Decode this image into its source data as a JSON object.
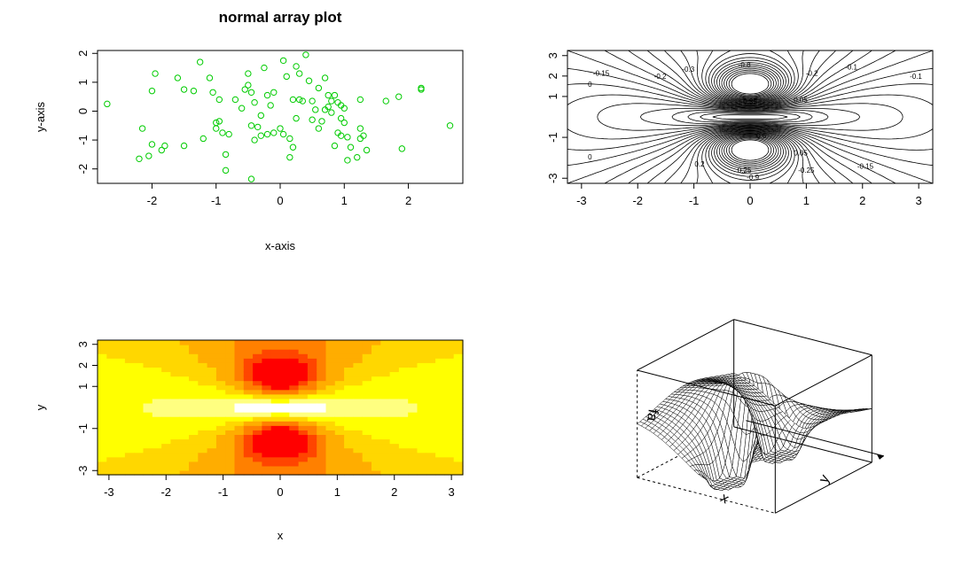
{
  "chart_data": [
    {
      "type": "scatter",
      "title": "normal array plot",
      "xlabel": "x-axis",
      "ylabel": "y-axis",
      "xlim": [
        -2.85,
        2.85
      ],
      "ylim": [
        -2.5,
        2.1
      ],
      "xticks": [
        "-2",
        "-1",
        "0",
        "1",
        "2"
      ],
      "yticks": [
        "-2",
        "-1",
        "0",
        "1",
        "2"
      ],
      "marker": "open-circle",
      "color": "#00cc00",
      "points": [
        [
          -2.7,
          0.25
        ],
        [
          -2.2,
          -1.65
        ],
        [
          -2.15,
          -0.6
        ],
        [
          -2.05,
          -1.55
        ],
        [
          -2.0,
          0.7
        ],
        [
          -2.0,
          -1.15
        ],
        [
          -1.95,
          1.3
        ],
        [
          -1.85,
          -1.35
        ],
        [
          -1.8,
          -1.2
        ],
        [
          -1.6,
          1.15
        ],
        [
          -1.5,
          0.75
        ],
        [
          -1.5,
          -1.2
        ],
        [
          -1.35,
          0.7
        ],
        [
          -1.25,
          1.7
        ],
        [
          -1.2,
          -0.95
        ],
        [
          -1.1,
          1.15
        ],
        [
          -1.05,
          0.65
        ],
        [
          -1.0,
          -0.4
        ],
        [
          -1.0,
          -0.6
        ],
        [
          -0.95,
          0.4
        ],
        [
          -0.95,
          -0.35
        ],
        [
          -0.9,
          -0.75
        ],
        [
          -0.85,
          -2.05
        ],
        [
          -0.85,
          -1.5
        ],
        [
          -0.8,
          -0.8
        ],
        [
          -0.7,
          0.4
        ],
        [
          -0.6,
          0.1
        ],
        [
          -0.55,
          0.75
        ],
        [
          -0.5,
          0.9
        ],
        [
          -0.5,
          1.3
        ],
        [
          -0.45,
          0.65
        ],
        [
          -0.45,
          -0.5
        ],
        [
          -0.45,
          -2.35
        ],
        [
          -0.4,
          0.3
        ],
        [
          -0.4,
          -1.0
        ],
        [
          -0.35,
          -0.55
        ],
        [
          -0.3,
          -0.15
        ],
        [
          -0.3,
          -0.85
        ],
        [
          -0.25,
          1.5
        ],
        [
          -0.2,
          0.55
        ],
        [
          -0.2,
          -0.8
        ],
        [
          -0.15,
          0.2
        ],
        [
          -0.1,
          0.65
        ],
        [
          -0.1,
          -0.75
        ],
        [
          0.0,
          -0.6
        ],
        [
          0.05,
          -0.8
        ],
        [
          0.05,
          1.75
        ],
        [
          0.1,
          1.2
        ],
        [
          0.15,
          -0.95
        ],
        [
          0.15,
          -1.6
        ],
        [
          0.2,
          0.4
        ],
        [
          0.2,
          -1.25
        ],
        [
          0.25,
          -0.25
        ],
        [
          0.25,
          1.55
        ],
        [
          0.3,
          1.3
        ],
        [
          0.3,
          0.4
        ],
        [
          0.35,
          0.35
        ],
        [
          0.4,
          1.95
        ],
        [
          0.45,
          1.05
        ],
        [
          0.5,
          0.35
        ],
        [
          0.5,
          -0.3
        ],
        [
          0.55,
          0.05
        ],
        [
          0.6,
          -0.6
        ],
        [
          0.6,
          0.8
        ],
        [
          0.65,
          -0.35
        ],
        [
          0.7,
          1.15
        ],
        [
          0.7,
          0.05
        ],
        [
          0.75,
          0.15
        ],
        [
          0.75,
          0.55
        ],
        [
          0.8,
          0.35
        ],
        [
          0.8,
          -0.05
        ],
        [
          0.85,
          -1.2
        ],
        [
          0.85,
          0.55
        ],
        [
          0.9,
          0.3
        ],
        [
          0.9,
          -0.75
        ],
        [
          0.95,
          -0.85
        ],
        [
          0.95,
          -0.25
        ],
        [
          0.95,
          0.2
        ],
        [
          1.0,
          0.1
        ],
        [
          1.0,
          -0.4
        ],
        [
          1.05,
          -0.9
        ],
        [
          1.05,
          -1.7
        ],
        [
          1.1,
          -1.25
        ],
        [
          1.2,
          -1.6
        ],
        [
          1.25,
          -0.95
        ],
        [
          1.25,
          -0.6
        ],
        [
          1.25,
          0.4
        ],
        [
          1.3,
          -0.85
        ],
        [
          1.35,
          -1.35
        ],
        [
          1.65,
          0.35
        ],
        [
          1.85,
          0.5
        ],
        [
          1.9,
          -1.3
        ],
        [
          2.2,
          0.75
        ],
        [
          2.2,
          0.8
        ],
        [
          2.65,
          -0.5
        ]
      ]
    },
    {
      "type": "contour",
      "xlim": [
        -3.25,
        3.25
      ],
      "ylim": [
        -3.25,
        3.25
      ],
      "xticks": [
        "-3",
        "-2",
        "-1",
        "0",
        "1",
        "2",
        "3"
      ],
      "yticks": [
        "-3",
        "-1",
        "1",
        "2",
        "3"
      ],
      "line_color": "#000000",
      "contour_labels": [
        "-0.15",
        "-0.2",
        "-0.1",
        "0",
        "0.05",
        "-0.1",
        "-0.2",
        "-0.25",
        "-0.15",
        "0",
        "0.05",
        "0.2",
        "0.25",
        "-0.3",
        "-0.9",
        "-0.8",
        "0.35",
        "0.6"
      ]
    },
    {
      "type": "heatmap",
      "xlabel": "x",
      "ylabel": "y",
      "xlim": [
        -3.2,
        3.2
      ],
      "ylim": [
        -3.2,
        3.2
      ],
      "xticks": [
        "-3",
        "-2",
        "-1",
        "0",
        "1",
        "2",
        "3"
      ],
      "yticks": [
        "-3",
        "-1",
        "1",
        "2",
        "3"
      ],
      "palette": [
        "#ff0000",
        "#ff4500",
        "#ff8000",
        "#ffad00",
        "#ffd700",
        "#ffff00",
        "#ffff80",
        "#ffffff"
      ]
    },
    {
      "type": "surface",
      "xlabel": "x",
      "ylabel": "y",
      "zlabel": "fa"
    }
  ]
}
